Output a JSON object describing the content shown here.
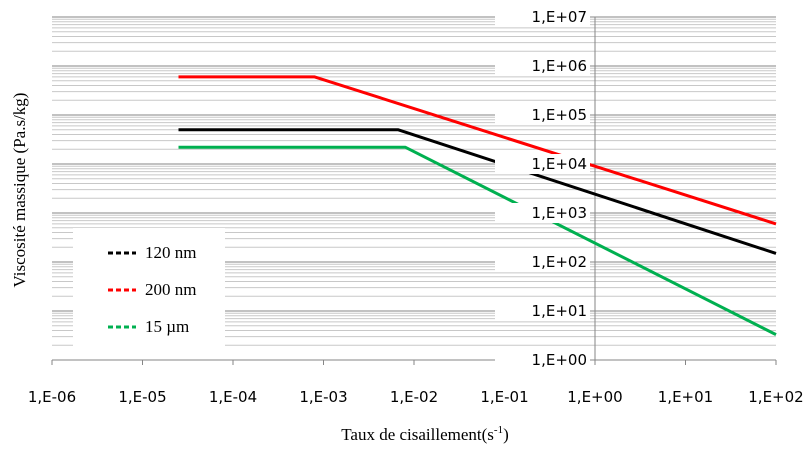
{
  "chart_data": {
    "type": "line",
    "xscale": "log",
    "yscale": "log",
    "xlim": [
      1e-06,
      100
    ],
    "ylim": [
      1,
      10000000
    ],
    "x_ticks": [
      "1,E-06",
      "1,E-05",
      "1,E-04",
      "1,E-03",
      "1,E-02",
      "1,E-01",
      "1,E+00",
      "1,E+01",
      "1,E+02"
    ],
    "y_ticks": [
      "1,E+00",
      "1,E+01",
      "1,E+02",
      "1,E+03",
      "1,E+04",
      "1,E+05",
      "1,E+06",
      "1,E+07"
    ],
    "xlabel": "Taux de cisaillement(s",
    "xlabel_sup": "-1",
    "xlabel_end": ")",
    "ylabel": "Viscosité massique (Pa.s/kg)",
    "grid": "horizontal major and minor",
    "legend_position": "bottom-left",
    "series": [
      {
        "name": "120 nm",
        "color": "#000000",
        "x": [
          2.5e-05,
          0.0067,
          100
        ],
        "y": [
          50000,
          50000,
          150
        ]
      },
      {
        "name": "200 nm",
        "color": "#ff0000",
        "x": [
          2.5e-05,
          0.0008,
          100
        ],
        "y": [
          600000,
          600000,
          600
        ]
      },
      {
        "name": "15 µm",
        "color": "#00b050",
        "x": [
          2.5e-05,
          0.008,
          100
        ],
        "y": [
          22000,
          22000,
          3.3
        ]
      }
    ]
  }
}
